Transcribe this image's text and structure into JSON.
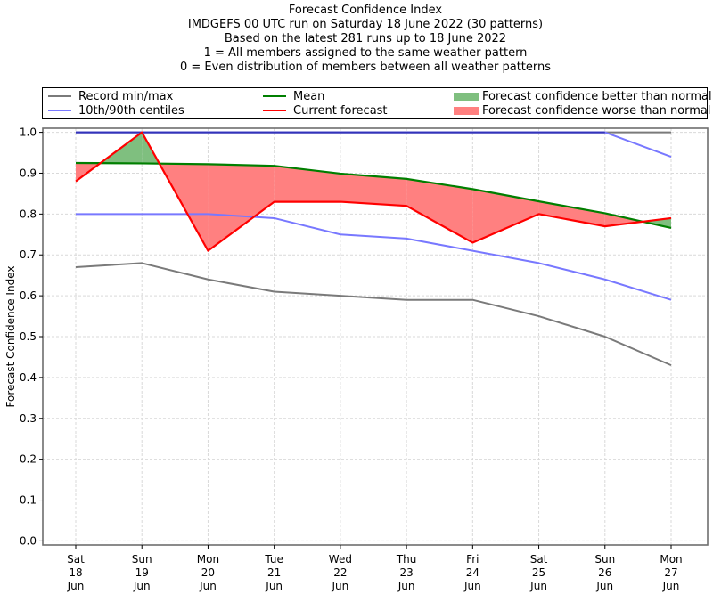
{
  "chart_data": {
    "type": "line",
    "title": "Forecast Confidence Index",
    "subtitle_lines": [
      "IMDGEFS 00 UTC run on Saturday 18 June 2022 (30 patterns)",
      "Based on the latest 281 runs up to 18 June 2022",
      "1 = All members assigned to the same weather pattern",
      "0 = Even distribution of members between all weather patterns"
    ],
    "xlabel": "",
    "ylabel": "Forecast Confidence Index",
    "ylim": [
      -0.01,
      1.01
    ],
    "yticks": [
      "0.0",
      "0.1",
      "0.2",
      "0.3",
      "0.4",
      "0.5",
      "0.6",
      "0.7",
      "0.8",
      "0.9",
      "1.0"
    ],
    "ytick_values": [
      0.0,
      0.1,
      0.2,
      0.3,
      0.4,
      0.5,
      0.6,
      0.7,
      0.8,
      0.9,
      1.0
    ],
    "categories": [
      [
        "Sat",
        "18",
        "Jun"
      ],
      [
        "Sun",
        "19",
        "Jun"
      ],
      [
        "Mon",
        "20",
        "Jun"
      ],
      [
        "Tue",
        "21",
        "Jun"
      ],
      [
        "Wed",
        "22",
        "Jun"
      ],
      [
        "Thu",
        "23",
        "Jun"
      ],
      [
        "Fri",
        "24",
        "Jun"
      ],
      [
        "Sat",
        "25",
        "Jun"
      ],
      [
        "Sun",
        "26",
        "Jun"
      ],
      [
        "Mon",
        "27",
        "Jun"
      ]
    ],
    "grid": true,
    "legend_position": "top",
    "series": [
      {
        "name": "Record min/max",
        "role": "record_max",
        "color": "#7a7a7a",
        "values": [
          1.0,
          1.0,
          1.0,
          1.0,
          1.0,
          1.0,
          1.0,
          1.0,
          1.0,
          1.0
        ]
      },
      {
        "name": "Record min/max",
        "role": "record_min",
        "color": "#7a7a7a",
        "values": [
          0.67,
          0.68,
          0.64,
          0.61,
          0.6,
          0.59,
          0.59,
          0.55,
          0.5,
          0.43
        ]
      },
      {
        "name": "10th/90th centiles",
        "role": "p90",
        "color": "#7878ff",
        "values": [
          1.0,
          1.0,
          1.0,
          1.0,
          1.0,
          1.0,
          1.0,
          1.0,
          1.0,
          0.94
        ]
      },
      {
        "name": "10th/90th centiles",
        "role": "p10",
        "color": "#7878ff",
        "values": [
          0.8,
          0.8,
          0.8,
          0.79,
          0.75,
          0.74,
          0.71,
          0.68,
          0.64,
          0.59
        ]
      },
      {
        "name": "Mean",
        "role": "mean",
        "color": "#007f00",
        "values": [
          0.925,
          0.924,
          0.922,
          0.918,
          0.899,
          0.886,
          0.861,
          0.831,
          0.802,
          0.766
        ]
      },
      {
        "name": "Current forecast",
        "role": "forecast",
        "color": "#ff0000",
        "values": [
          0.88,
          1.0,
          0.71,
          0.83,
          0.83,
          0.82,
          0.73,
          0.8,
          0.77,
          0.79
        ]
      }
    ],
    "fills": [
      {
        "name": "Forecast confidence better than normal",
        "color": "#7fbf7f"
      },
      {
        "name": "Forecast confidence worse than normal",
        "color": "#ff8080"
      }
    ],
    "overlap_color": "#3333bb"
  }
}
